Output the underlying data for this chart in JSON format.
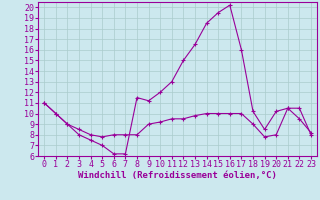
{
  "xlabel": "Windchill (Refroidissement éolien,°C)",
  "background_color": "#cce8ee",
  "grid_color": "#aacccc",
  "line_color": "#990099",
  "marker": "+",
  "x": [
    0,
    1,
    2,
    3,
    4,
    5,
    6,
    7,
    8,
    9,
    10,
    11,
    12,
    13,
    14,
    15,
    16,
    17,
    18,
    19,
    20,
    21,
    22,
    23
  ],
  "y_upper": [
    11,
    10,
    9,
    8,
    7.5,
    7,
    6.2,
    6.2,
    11.5,
    11.2,
    12,
    13,
    15,
    16.5,
    18.5,
    19.5,
    20.2,
    16,
    10.2,
    8.5,
    10.2,
    10.5,
    9.5,
    8.2
  ],
  "y_lower": [
    11,
    10,
    9,
    8.5,
    8,
    7.8,
    8,
    8,
    8,
    9,
    9.2,
    9.5,
    9.5,
    9.8,
    10,
    10,
    10,
    10,
    9,
    7.8,
    8,
    10.5,
    10.5,
    8
  ],
  "ylim": [
    6,
    20.5
  ],
  "xlim": [
    -0.5,
    23.5
  ],
  "yticks": [
    6,
    7,
    8,
    9,
    10,
    11,
    12,
    13,
    14,
    15,
    16,
    17,
    18,
    19,
    20
  ],
  "xticks": [
    0,
    1,
    2,
    3,
    4,
    5,
    6,
    7,
    8,
    9,
    10,
    11,
    12,
    13,
    14,
    15,
    16,
    17,
    18,
    19,
    20,
    21,
    22,
    23
  ],
  "tick_fontsize": 6,
  "xlabel_fontsize": 6.5,
  "marker_size": 3,
  "line_width": 0.8
}
